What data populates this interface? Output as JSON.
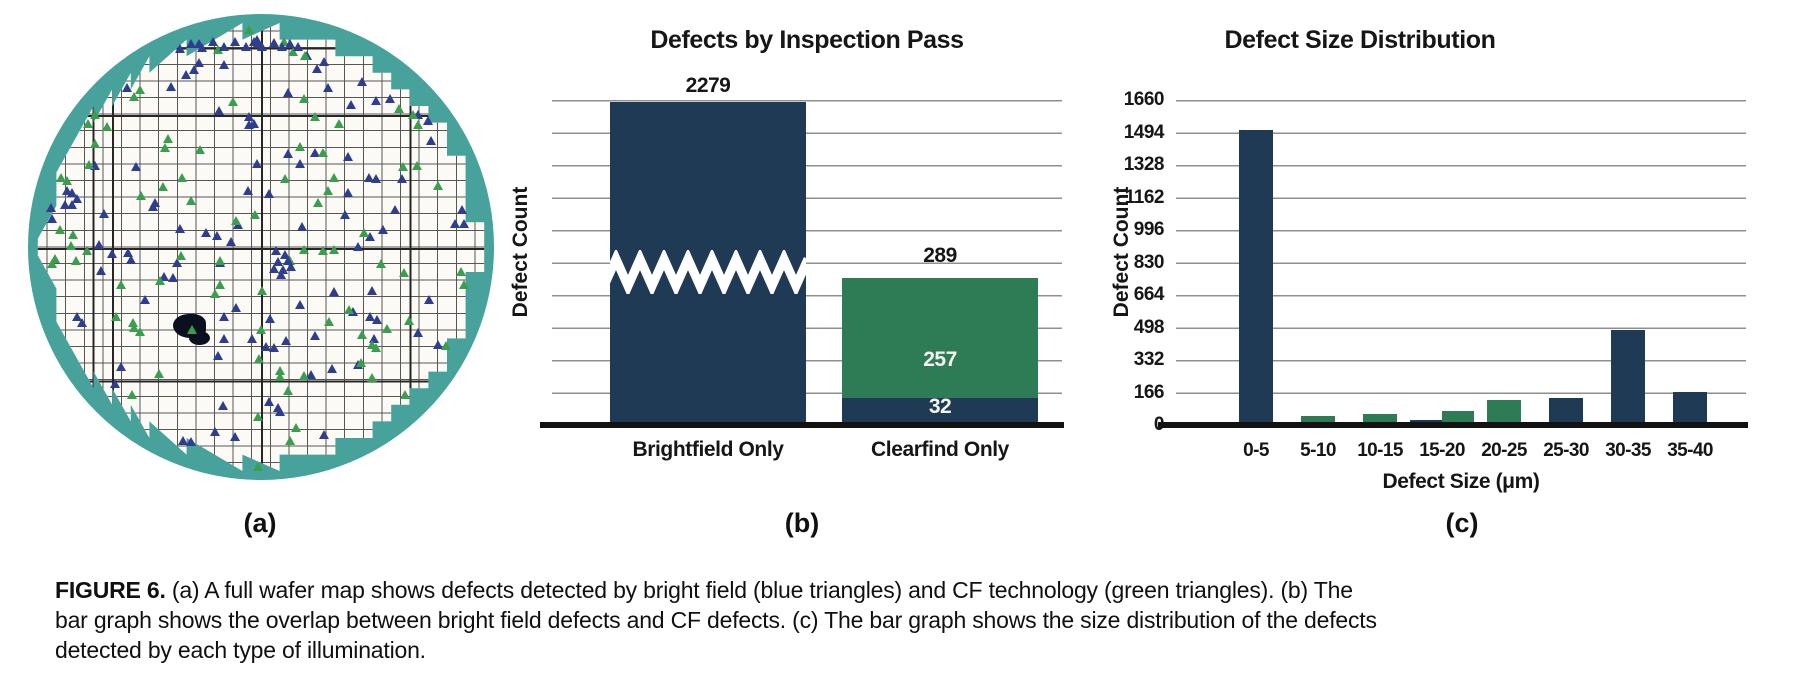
{
  "caption": {
    "label": "FIGURE 6.",
    "line1": " (a) A full wafer map shows defects detected by bright field (blue triangles) and CF technology (green triangles). (b) The",
    "line2": "bar graph shows the overlap between bright field defects and CF defects. (c) The bar graph shows the size distribution of the defects",
    "line3": "detected by each type of illumination."
  },
  "panel_letters": {
    "a": "(a)",
    "b": "(b)",
    "c": "(c)"
  },
  "wafer": {
    "teal": "#47a29b",
    "die_fill": "#fbfaf5",
    "grid_thin": "#565656",
    "grid_thick": "#262626",
    "triangle_navy": "#2e3d8e",
    "triangle_green": "#3b9e4f",
    "blob_color": "#0b101f",
    "random_navy": 104,
    "random_green": 86,
    "seed": 20,
    "cluster_navy": [
      [
        152,
        38
      ],
      [
        163,
        33
      ],
      [
        174,
        37
      ],
      [
        185,
        31
      ],
      [
        196,
        36
      ],
      [
        207,
        31
      ],
      [
        218,
        36
      ],
      [
        226,
        31
      ],
      [
        234,
        36
      ],
      [
        246,
        32
      ],
      [
        254,
        36
      ],
      [
        262,
        33
      ],
      [
        270,
        36
      ],
      [
        171,
        52
      ],
      [
        158,
        64
      ],
      [
        143,
        76
      ],
      [
        289,
        58
      ],
      [
        362,
        88
      ],
      [
        248,
        240
      ],
      [
        257,
        244
      ],
      [
        250,
        251
      ],
      [
        260,
        250
      ],
      [
        246,
        258
      ],
      [
        255,
        259
      ],
      [
        263,
        256
      ]
    ],
    "cluster_green": [
      [
        230,
        456
      ],
      [
        262,
        430
      ],
      [
        208,
        210
      ],
      [
        300,
        180
      ]
    ]
  },
  "chart_data": [
    {
      "id": "b",
      "type": "bar",
      "title": "Defects by Inspection Pass",
      "ylabel": "Defect Count",
      "categories": [
        "Brightfield Only",
        "Clearfind Only"
      ],
      "stacked": true,
      "broken_axis_on_first_bar": true,
      "grid": true,
      "series": [
        {
          "name": "Brightfield",
          "color": "#1e3a55",
          "values": [
            2279,
            32
          ]
        },
        {
          "name": "Clearfind",
          "color": "#2d7c55",
          "values": [
            0,
            257
          ]
        }
      ],
      "totals": [
        2279,
        289
      ],
      "labels": {
        "total_bf": "2279",
        "total_cf": "289",
        "cf_green": "257",
        "cf_navy": "32"
      }
    },
    {
      "id": "c",
      "type": "bar",
      "title": "Defect Size Distribution",
      "xlabel": "Defect Size (μm)",
      "ylabel": "Defect Count",
      "categories": [
        "0-5",
        "5-10",
        "10-15",
        "15-20",
        "20-25",
        "25-30",
        "30-35",
        "35-40"
      ],
      "yticks": [
        0,
        166,
        332,
        498,
        664,
        830,
        996,
        1162,
        1328,
        1494,
        1660
      ],
      "ylim": [
        0,
        1660
      ],
      "grid": true,
      "legend": false,
      "series": [
        {
          "name": "Brightfield",
          "color": "#1e3a55",
          "values": [
            1505,
            0,
            0,
            25,
            0,
            140,
            485,
            166
          ]
        },
        {
          "name": "Clearfind",
          "color": "#2d7c55",
          "values": [
            0,
            45,
            58,
            72,
            128,
            0,
            0,
            0
          ]
        }
      ]
    }
  ]
}
